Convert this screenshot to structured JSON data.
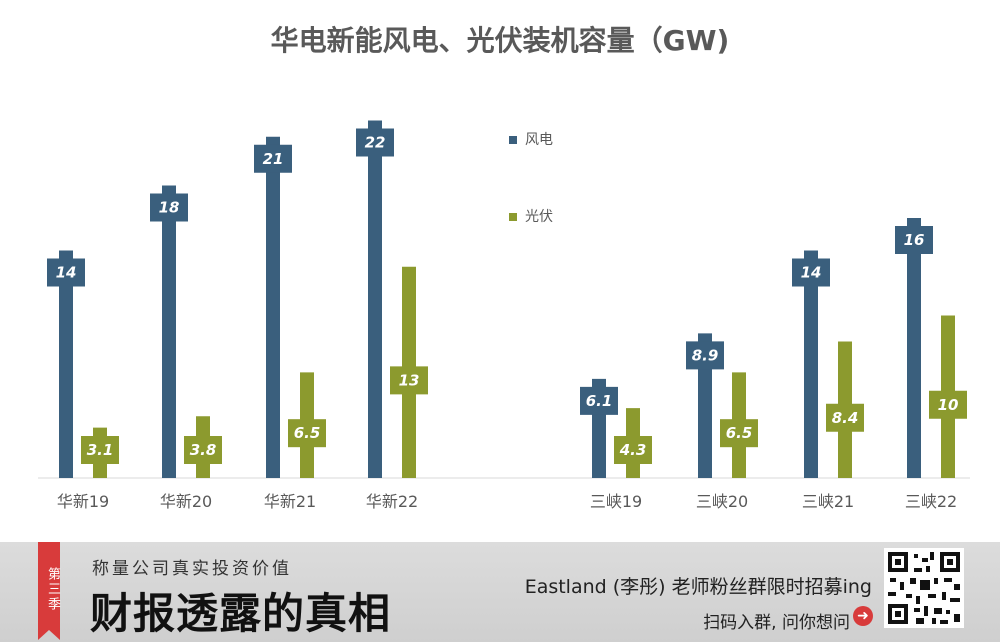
{
  "chart_data": {
    "type": "bar",
    "title": "华电新能风电、光伏装机容量（GW)",
    "categories": [
      "华新19",
      "华新20",
      "华新21",
      "华新22",
      "三峡19",
      "三峡20",
      "三峡21",
      "三峡22"
    ],
    "series": [
      {
        "name": "风电",
        "color": "#3a5f7d",
        "values": [
          14,
          18,
          21,
          22,
          6.1,
          8.9,
          14,
          16
        ]
      },
      {
        "name": "光伏",
        "color": "#8c9a2e",
        "values": [
          3.1,
          3.8,
          6.5,
          13,
          4.3,
          6.5,
          8.4,
          10
        ]
      }
    ],
    "ylim": [
      0,
      24
    ],
    "grid": false,
    "legend_position": "right"
  },
  "banner": {
    "ribbon": "第三季",
    "tagline": "称量公司真实投资价值",
    "brand": "财报透露的真相",
    "recruit": "Eastland (李彤) 老师粉丝群限时招募ing",
    "scan": "扫码入群, 问你想问",
    "arrow_icon": "➜"
  }
}
